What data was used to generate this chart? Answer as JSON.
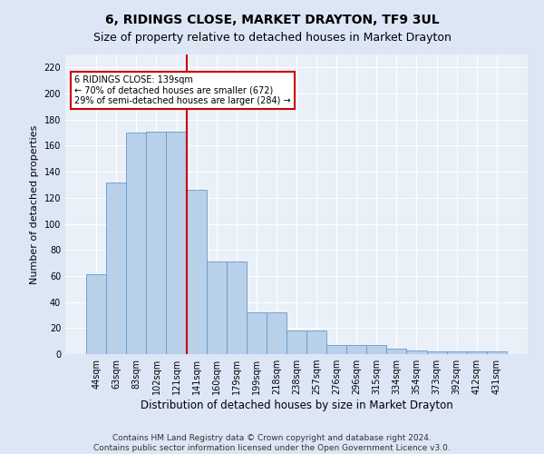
{
  "title": "6, RIDINGS CLOSE, MARKET DRAYTON, TF9 3UL",
  "subtitle": "Size of property relative to detached houses in Market Drayton",
  "xlabel": "Distribution of detached houses by size in Market Drayton",
  "ylabel": "Number of detached properties",
  "categories": [
    "44sqm",
    "63sqm",
    "83sqm",
    "102sqm",
    "121sqm",
    "141sqm",
    "160sqm",
    "179sqm",
    "199sqm",
    "218sqm",
    "238sqm",
    "257sqm",
    "276sqm",
    "296sqm",
    "315sqm",
    "334sqm",
    "354sqm",
    "373sqm",
    "392sqm",
    "412sqm",
    "431sqm"
  ],
  "values": [
    61,
    132,
    170,
    171,
    171,
    126,
    71,
    71,
    32,
    32,
    18,
    18,
    7,
    7,
    7,
    4,
    3,
    2,
    2,
    2,
    2
  ],
  "bar_color": "#b8d0ea",
  "bar_edge_color": "#6699cc",
  "vline_color": "#cc0000",
  "annotation_text": "6 RIDINGS CLOSE: 139sqm\n← 70% of detached houses are smaller (672)\n29% of semi-detached houses are larger (284) →",
  "annotation_box_color": "#cc0000",
  "annotation_box_fill": "#ffffff",
  "ylim": [
    0,
    230
  ],
  "yticks": [
    0,
    20,
    40,
    60,
    80,
    100,
    120,
    140,
    160,
    180,
    200,
    220
  ],
  "footer1": "Contains HM Land Registry data © Crown copyright and database right 2024.",
  "footer2": "Contains public sector information licensed under the Open Government Licence v3.0.",
  "bg_color": "#dce6f5",
  "plot_bg_color": "#eaf0f8",
  "title_fontsize": 10,
  "subtitle_fontsize": 9,
  "ylabel_fontsize": 8,
  "xlabel_fontsize": 8.5,
  "tick_fontsize": 7,
  "footer_fontsize": 6.5
}
